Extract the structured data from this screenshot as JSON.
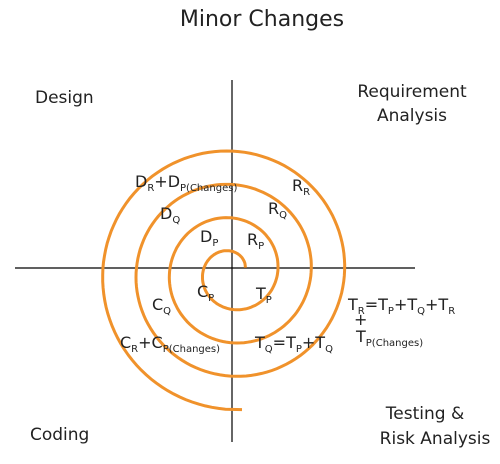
{
  "title": "Minor Changes",
  "quadrants": {
    "top_left": [
      "Design"
    ],
    "top_right": [
      "Requirement",
      "Analysis"
    ],
    "bottom_left": [
      "Coding"
    ],
    "bottom_right": [
      "Testing &",
      "Risk Analysis"
    ]
  },
  "labels": [
    [
      {
        "base": "D",
        "sub": "R"
      },
      {
        "base": "+D",
        "sub": "P(Changes)"
      }
    ],
    [
      {
        "base": "R",
        "sub": "R"
      }
    ],
    [
      {
        "base": "D",
        "sub": "Q"
      }
    ],
    [
      {
        "base": "R",
        "sub": "Q"
      }
    ],
    [
      {
        "base": "D",
        "sub": "P"
      }
    ],
    [
      {
        "base": "R",
        "sub": "P"
      }
    ],
    [
      {
        "base": "C",
        "sub": "P"
      }
    ],
    [
      {
        "base": "T",
        "sub": "P"
      }
    ],
    [
      {
        "base": "C",
        "sub": "Q"
      }
    ],
    [
      {
        "base": "C",
        "sub": "R"
      },
      {
        "base": "+C",
        "sub": "P(Changes)"
      }
    ],
    [
      {
        "base": "T",
        "sub": "Q"
      },
      {
        "base": "=T",
        "sub": "P"
      },
      {
        "base": "+T",
        "sub": "Q"
      }
    ],
    [
      {
        "base": "T",
        "sub": "R"
      },
      {
        "base": "=T",
        "sub": "P"
      },
      {
        "base": "+T",
        "sub": "Q"
      },
      {
        "base": "+T",
        "sub": "R"
      }
    ],
    [
      {
        "base": "+"
      }
    ],
    [
      {
        "base": "T",
        "sub": "P(Changes)"
      }
    ]
  ]
}
